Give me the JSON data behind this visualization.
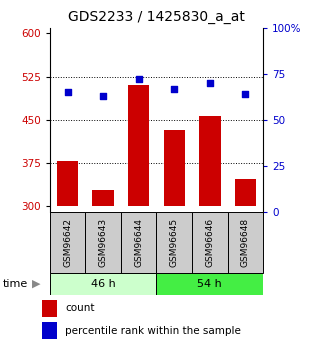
{
  "title": "GDS2233 / 1425830_a_at",
  "samples": [
    "GSM96642",
    "GSM96643",
    "GSM96644",
    "GSM96645",
    "GSM96646",
    "GSM96648"
  ],
  "counts": [
    378,
    328,
    510,
    432,
    456,
    348
  ],
  "percentiles": [
    65,
    63,
    72,
    67,
    70,
    64
  ],
  "ylim_left": [
    290,
    610
  ],
  "ylim_right": [
    0,
    100
  ],
  "yticks_left": [
    300,
    375,
    450,
    525,
    600
  ],
  "yticks_right": [
    0,
    25,
    50,
    75,
    100
  ],
  "ytick_labels_right": [
    "0",
    "25",
    "50",
    "75",
    "100%"
  ],
  "bar_color": "#cc0000",
  "dot_color": "#0000cc",
  "bar_bottom": 300,
  "groups": [
    {
      "label": "46 h",
      "indices": [
        0,
        1,
        2
      ],
      "color": "#ccffcc"
    },
    {
      "label": "54 h",
      "indices": [
        3,
        4,
        5
      ],
      "color": "#44ee44"
    }
  ],
  "time_label": "time",
  "legend_count_label": "count",
  "legend_percentile_label": "percentile rank within the sample",
  "grid_color": "#000000",
  "sample_bg_color": "#cccccc",
  "title_fontsize": 10,
  "tick_fontsize": 7.5,
  "label_fontsize": 7.5
}
